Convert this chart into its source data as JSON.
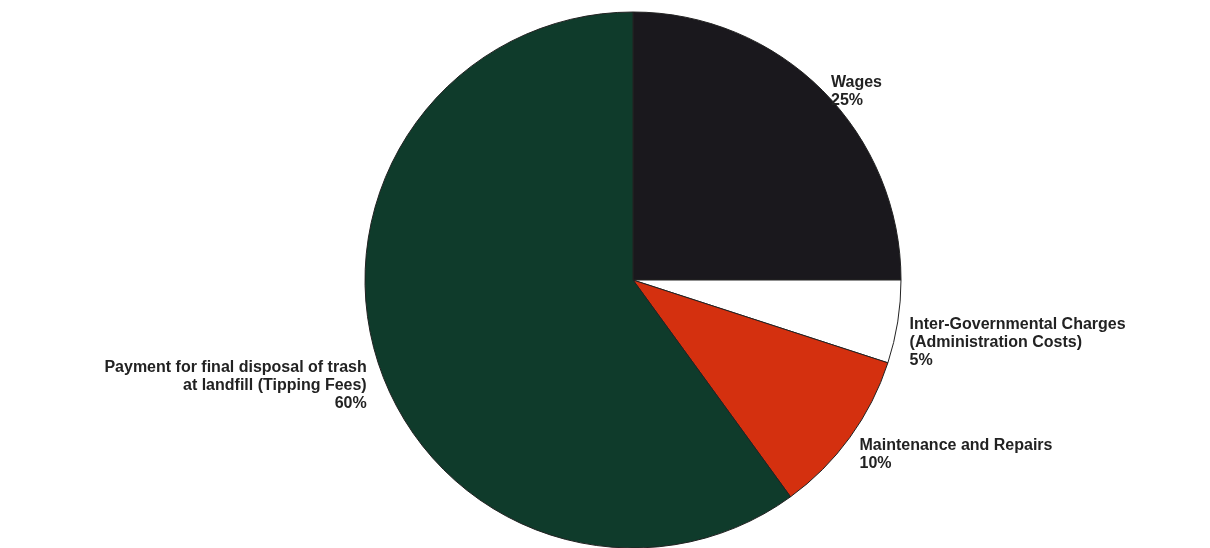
{
  "chart_data": {
    "type": "pie",
    "categories": [
      "Wages",
      "Inter-Governmental Charges\n(Administration Costs)",
      "Maintenance and Repairs",
      "Payment for final disposal of trash\nat landfill (Tipping Fees)"
    ],
    "values": [
      25,
      5,
      10,
      60
    ],
    "value_labels": [
      "25%",
      "5%",
      "10%",
      "60%"
    ],
    "colors": [
      "#1a181d",
      "#ffffff",
      "#d4300f",
      "#0f3b2b"
    ]
  }
}
